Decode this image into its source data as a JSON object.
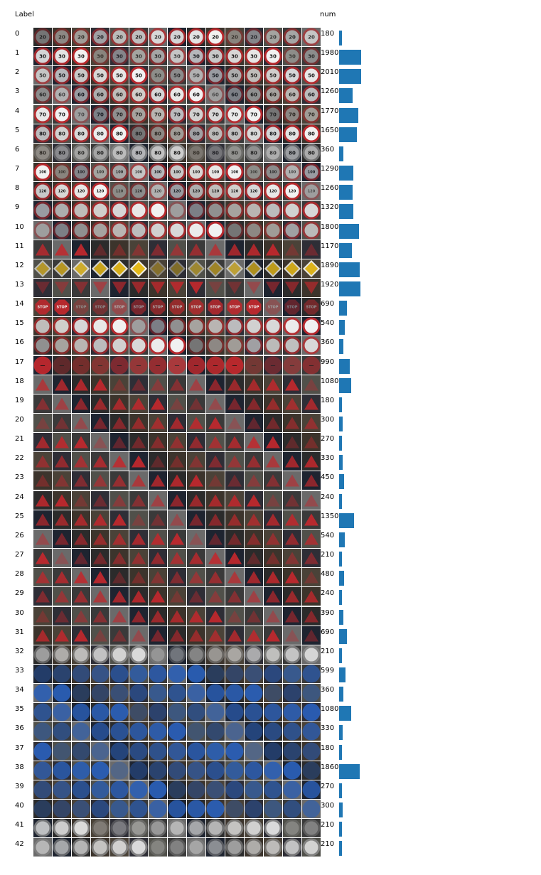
{
  "chart_data": {
    "type": "bar",
    "xlabel": "Label",
    "ylabel": "num",
    "categories": [
      "0",
      "1",
      "2",
      "3",
      "4",
      "5",
      "6",
      "7",
      "8",
      "9",
      "10",
      "11",
      "12",
      "13",
      "14",
      "15",
      "16",
      "17",
      "18",
      "19",
      "20",
      "21",
      "22",
      "23",
      "24",
      "25",
      "26",
      "27",
      "28",
      "29",
      "30",
      "31",
      "32",
      "33",
      "34",
      "35",
      "36",
      "37",
      "38",
      "39",
      "40",
      "41",
      "42"
    ],
    "values": [
      180,
      1980,
      2010,
      1260,
      1770,
      1650,
      360,
      1290,
      1260,
      1320,
      1800,
      1170,
      1890,
      1920,
      690,
      540,
      360,
      990,
      1080,
      180,
      300,
      270,
      330,
      450,
      240,
      1350,
      540,
      210,
      480,
      240,
      390,
      690,
      210,
      599,
      360,
      1080,
      330,
      180,
      1860,
      270,
      300,
      210,
      210
    ],
    "xlim": [
      0,
      2010
    ],
    "bar_color": "#1f77b4",
    "orientation": "horizontal",
    "grid": false,
    "samples_per_row": 15,
    "sample_styles": [
      {
        "shape": "round",
        "fill": "#ffffff",
        "border": "#c0282d",
        "text": "20"
      },
      {
        "shape": "round",
        "fill": "#ffffff",
        "border": "#c0282d",
        "text": "30"
      },
      {
        "shape": "round",
        "fill": "#ffffff",
        "border": "#c0282d",
        "text": "50"
      },
      {
        "shape": "round",
        "fill": "#ffffff",
        "border": "#c0282d",
        "text": "60"
      },
      {
        "shape": "round",
        "fill": "#ffffff",
        "border": "#c0282d",
        "text": "70"
      },
      {
        "shape": "round",
        "fill": "#ffffff",
        "border": "#c0282d",
        "text": "80"
      },
      {
        "shape": "round",
        "fill": "#d8d8d8",
        "border": "#8a8a8a",
        "text": "80"
      },
      {
        "shape": "round",
        "fill": "#ffffff",
        "border": "#c0282d",
        "text": "100"
      },
      {
        "shape": "round",
        "fill": "#ffffff",
        "border": "#c0282d",
        "text": "120"
      },
      {
        "shape": "round",
        "fill": "#ffffff",
        "border": "#c0282d",
        "text": ""
      },
      {
        "shape": "round",
        "fill": "#ffffff",
        "border": "#c0282d",
        "text": ""
      },
      {
        "shape": "tri-up",
        "fill": "#ffffff",
        "border": "#c0282d",
        "text": ""
      },
      {
        "shape": "diamond",
        "fill": "#f2c318",
        "border": "#ffffff",
        "text": ""
      },
      {
        "shape": "tri-down",
        "fill": "#ffffff",
        "border": "#c0282d",
        "text": ""
      },
      {
        "shape": "oct",
        "fill": "#c0282d",
        "border": "#c0282d",
        "text": "STOP"
      },
      {
        "shape": "round",
        "fill": "#ffffff",
        "border": "#c0282d",
        "text": ""
      },
      {
        "shape": "round",
        "fill": "#ffffff",
        "border": "#c0282d",
        "text": ""
      },
      {
        "shape": "round",
        "fill": "#c0282d",
        "border": "#c0282d",
        "text": "—"
      },
      {
        "shape": "tri-up",
        "fill": "#ffffff",
        "border": "#c0282d",
        "text": ""
      },
      {
        "shape": "tri-up",
        "fill": "#ffffff",
        "border": "#c0282d",
        "text": ""
      },
      {
        "shape": "tri-up",
        "fill": "#ffffff",
        "border": "#c0282d",
        "text": ""
      },
      {
        "shape": "tri-up",
        "fill": "#ffffff",
        "border": "#c0282d",
        "text": ""
      },
      {
        "shape": "tri-up",
        "fill": "#ffffff",
        "border": "#c0282d",
        "text": ""
      },
      {
        "shape": "tri-up",
        "fill": "#ffffff",
        "border": "#c0282d",
        "text": ""
      },
      {
        "shape": "tri-up",
        "fill": "#ffffff",
        "border": "#c0282d",
        "text": ""
      },
      {
        "shape": "tri-up",
        "fill": "#ffffff",
        "border": "#c0282d",
        "text": ""
      },
      {
        "shape": "tri-up",
        "fill": "#ffffff",
        "border": "#c0282d",
        "text": ""
      },
      {
        "shape": "tri-up",
        "fill": "#ffffff",
        "border": "#c0282d",
        "text": ""
      },
      {
        "shape": "tri-up",
        "fill": "#ffffff",
        "border": "#c0282d",
        "text": ""
      },
      {
        "shape": "tri-up",
        "fill": "#ffffff",
        "border": "#c0282d",
        "text": ""
      },
      {
        "shape": "tri-up",
        "fill": "#ffffff",
        "border": "#c0282d",
        "text": ""
      },
      {
        "shape": "tri-up",
        "fill": "#ffffff",
        "border": "#c0282d",
        "text": ""
      },
      {
        "shape": "round",
        "fill": "#e6e6e6",
        "border": "#8a8a8a",
        "text": ""
      },
      {
        "shape": "round",
        "fill": "#2a5fb8",
        "border": "#2a5fb8",
        "text": ""
      },
      {
        "shape": "round",
        "fill": "#2a5fb8",
        "border": "#2a5fb8",
        "text": ""
      },
      {
        "shape": "round",
        "fill": "#2a5fb8",
        "border": "#2a5fb8",
        "text": ""
      },
      {
        "shape": "round",
        "fill": "#2a5fb8",
        "border": "#2a5fb8",
        "text": ""
      },
      {
        "shape": "round",
        "fill": "#2a5fb8",
        "border": "#2a5fb8",
        "text": ""
      },
      {
        "shape": "round",
        "fill": "#2a5fb8",
        "border": "#2a5fb8",
        "text": ""
      },
      {
        "shape": "round",
        "fill": "#2a5fb8",
        "border": "#2a5fb8",
        "text": ""
      },
      {
        "shape": "round",
        "fill": "#2a5fb8",
        "border": "#2a5fb8",
        "text": ""
      },
      {
        "shape": "round",
        "fill": "#e6e6e6",
        "border": "#8a8a8a",
        "text": ""
      },
      {
        "shape": "round",
        "fill": "#e6e6e6",
        "border": "#8a8a8a",
        "text": ""
      }
    ]
  }
}
